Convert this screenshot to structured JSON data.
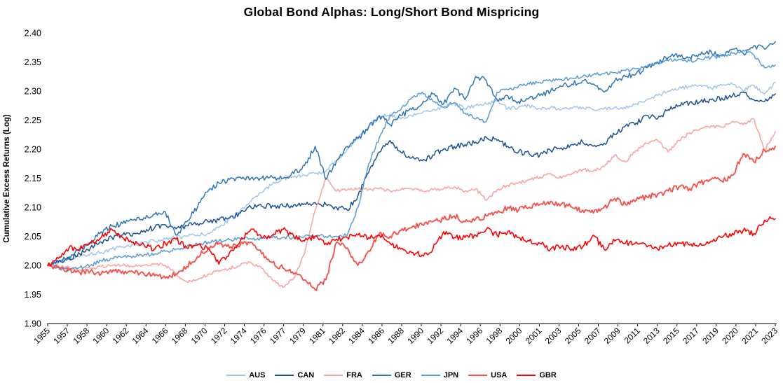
{
  "chart_data": {
    "type": "line",
    "title": "Global Bond Alphas: Long/Short Bond Mispricing",
    "ylabel": "Cumulative Excess Returns (Log)",
    "xlabel": "",
    "ylim": [
      1.9,
      2.4
    ],
    "y_ticks": [
      "2.40",
      "2.35",
      "2.30",
      "2.25",
      "2.20",
      "2.15",
      "2.10",
      "2.05",
      "2.00",
      "1.95",
      "1.90"
    ],
    "grid": false,
    "legend_position": "bottom",
    "x_tick_labels": [
      "1955",
      "1957",
      "1958",
      "1960",
      "1962",
      "1964",
      "1966",
      "1968",
      "1970",
      "1972",
      "1974",
      "1976",
      "1977",
      "1979",
      "1981",
      "1982",
      "1984",
      "1986",
      "1988",
      "1990",
      "1992",
      "1994",
      "1996",
      "1998",
      "2000",
      "2001",
      "2003",
      "2005",
      "2007",
      "2009",
      "2011",
      "2013",
      "2015",
      "2017",
      "2019",
      "2020",
      "2021",
      "2023"
    ],
    "x": [
      1955,
      1956,
      1957,
      1958,
      1959,
      1960,
      1961,
      1962,
      1963,
      1964,
      1965,
      1966,
      1967,
      1968,
      1969,
      1970,
      1971,
      1972,
      1973,
      1974,
      1975,
      1976,
      1977,
      1978,
      1979,
      1980,
      1981,
      1982,
      1983,
      1984,
      1985,
      1986,
      1987,
      1988,
      1989,
      1990,
      1991,
      1992,
      1993,
      1994,
      1995,
      1996,
      1997,
      1998,
      1999,
      2000,
      2001,
      2002,
      2003,
      2004,
      2005,
      2006,
      2007,
      2008,
      2009,
      2010,
      2011,
      2012,
      2013,
      2014,
      2015,
      2016,
      2017,
      2018,
      2019,
      2020,
      2021,
      2022,
      2023
    ],
    "series": [
      {
        "name": "AUS",
        "color": "#9DC3E6",
        "values": [
          2.0,
          2.005,
          2.01,
          2.015,
          2.02,
          2.022,
          2.028,
          2.032,
          2.035,
          2.04,
          2.042,
          2.045,
          2.048,
          2.05,
          2.052,
          2.055,
          2.065,
          2.08,
          2.095,
          2.11,
          2.125,
          2.14,
          2.15,
          2.152,
          2.155,
          2.158,
          2.162,
          2.18,
          2.2,
          2.22,
          2.24,
          2.255,
          2.26,
          2.252,
          2.258,
          2.262,
          2.268,
          2.272,
          2.278,
          2.27,
          2.275,
          2.278,
          2.282,
          2.27,
          2.272,
          2.275,
          2.27,
          2.272,
          2.268,
          2.27,
          2.272,
          2.268,
          2.27,
          2.272,
          2.27,
          2.278,
          2.285,
          2.292,
          2.3,
          2.305,
          2.308,
          2.31,
          2.305,
          2.31,
          2.312,
          2.3,
          2.31,
          2.295,
          2.315
        ]
      },
      {
        "name": "CAN",
        "color": "#1B5093",
        "values": [
          2.0,
          2.005,
          2.012,
          2.02,
          2.03,
          2.04,
          2.048,
          2.052,
          2.055,
          2.06,
          2.065,
          2.07,
          2.063,
          2.068,
          2.072,
          2.075,
          2.078,
          2.082,
          2.09,
          2.1,
          2.102,
          2.103,
          2.102,
          2.104,
          2.106,
          2.108,
          2.105,
          2.1,
          2.095,
          2.12,
          2.16,
          2.195,
          2.215,
          2.195,
          2.185,
          2.18,
          2.19,
          2.2,
          2.205,
          2.208,
          2.212,
          2.22,
          2.215,
          2.205,
          2.195,
          2.192,
          2.19,
          2.198,
          2.202,
          2.208,
          2.212,
          2.205,
          2.21,
          2.225,
          2.24,
          2.245,
          2.258,
          2.252,
          2.268,
          2.275,
          2.28,
          2.282,
          2.285,
          2.288,
          2.292,
          2.298,
          2.285,
          2.282,
          2.295
        ]
      },
      {
        "name": "FRA",
        "color": "#F7A6A3",
        "values": [
          2.0,
          1.998,
          1.996,
          1.992,
          1.995,
          1.998,
          2.0,
          2.0,
          1.998,
          2.0,
          2.002,
          2.0,
          1.985,
          1.972,
          1.975,
          1.985,
          1.99,
          1.995,
          2.0,
          2.005,
          1.995,
          1.975,
          1.962,
          1.978,
          2.02,
          2.095,
          2.15,
          2.128,
          2.13,
          2.132,
          2.13,
          2.132,
          2.128,
          2.13,
          2.132,
          2.128,
          2.13,
          2.132,
          2.135,
          2.128,
          2.132,
          2.112,
          2.13,
          2.138,
          2.142,
          2.148,
          2.152,
          2.158,
          2.15,
          2.158,
          2.165,
          2.162,
          2.17,
          2.19,
          2.178,
          2.198,
          2.21,
          2.215,
          2.195,
          2.215,
          2.228,
          2.235,
          2.24,
          2.238,
          2.248,
          2.242,
          2.252,
          2.198,
          2.23
        ]
      },
      {
        "name": "GER",
        "color": "#2E75B6",
        "values": [
          2.0,
          2.008,
          2.015,
          2.025,
          2.04,
          2.058,
          2.068,
          2.072,
          2.078,
          2.082,
          2.088,
          2.092,
          2.052,
          2.075,
          2.1,
          2.128,
          2.142,
          2.148,
          2.152,
          2.15,
          2.15,
          2.152,
          2.15,
          2.158,
          2.172,
          2.205,
          2.148,
          2.18,
          2.205,
          2.218,
          2.238,
          2.258,
          2.242,
          2.258,
          2.268,
          2.278,
          2.295,
          2.278,
          2.305,
          2.285,
          2.325,
          2.318,
          2.285,
          2.292,
          2.282,
          2.288,
          2.292,
          2.3,
          2.308,
          2.312,
          2.318,
          2.312,
          2.298,
          2.318,
          2.325,
          2.33,
          2.34,
          2.35,
          2.358,
          2.362,
          2.358,
          2.362,
          2.368,
          2.362,
          2.372,
          2.365,
          2.378,
          2.372,
          2.385
        ]
      },
      {
        "name": "JPN",
        "color": "#5B9BD5",
        "values": [
          2.0,
          1.996,
          1.992,
          1.996,
          2.0,
          2.008,
          2.012,
          2.014,
          2.016,
          2.018,
          2.02,
          2.024,
          2.028,
          2.032,
          2.036,
          2.04,
          2.042,
          2.044,
          2.046,
          2.046,
          2.046,
          2.048,
          2.048,
          2.048,
          2.05,
          2.05,
          2.05,
          2.05,
          2.052,
          2.1,
          2.175,
          2.22,
          2.258,
          2.268,
          2.288,
          2.298,
          2.282,
          2.272,
          2.28,
          2.262,
          2.252,
          2.248,
          2.298,
          2.302,
          2.308,
          2.312,
          2.315,
          2.318,
          2.32,
          2.322,
          2.325,
          2.328,
          2.33,
          2.332,
          2.335,
          2.338,
          2.342,
          2.348,
          2.352,
          2.355,
          2.352,
          2.355,
          2.358,
          2.36,
          2.365,
          2.37,
          2.362,
          2.34,
          2.345
        ]
      },
      {
        "name": "USA",
        "color": "#F4524D",
        "values": [
          2.0,
          1.998,
          1.992,
          1.988,
          1.99,
          1.985,
          1.988,
          1.99,
          1.988,
          1.985,
          1.982,
          1.978,
          1.985,
          1.998,
          2.015,
          2.03,
          2.038,
          2.03,
          2.035,
          2.04,
          2.02,
          2.005,
          1.995,
          1.985,
          1.975,
          1.958,
          1.975,
          2.04,
          2.03,
          2.0,
          2.025,
          2.055,
          2.05,
          2.06,
          2.065,
          2.07,
          2.075,
          2.08,
          2.085,
          2.075,
          2.08,
          2.085,
          2.09,
          2.1,
          2.095,
          2.1,
          2.105,
          2.11,
          2.105,
          2.1,
          2.095,
          2.09,
          2.1,
          2.115,
          2.105,
          2.112,
          2.118,
          2.122,
          2.128,
          2.135,
          2.132,
          2.142,
          2.148,
          2.145,
          2.155,
          2.192,
          2.178,
          2.198,
          2.205
        ]
      },
      {
        "name": "GBR",
        "color": "#FF0000",
        "values": [
          2.0,
          2.012,
          2.03,
          2.028,
          2.038,
          2.048,
          2.062,
          2.048,
          2.04,
          2.035,
          2.028,
          2.038,
          2.045,
          2.03,
          2.035,
          2.028,
          2.002,
          2.022,
          2.042,
          2.062,
          2.048,
          2.052,
          2.062,
          2.05,
          2.042,
          2.05,
          2.038,
          2.045,
          2.048,
          2.052,
          2.048,
          2.052,
          2.038,
          2.028,
          2.022,
          2.018,
          2.028,
          2.058,
          2.048,
          2.048,
          2.052,
          2.062,
          2.052,
          2.058,
          2.048,
          2.042,
          2.038,
          2.028,
          2.032,
          2.028,
          2.032,
          2.052,
          2.028,
          2.042,
          2.038,
          2.04,
          2.032,
          2.028,
          2.035,
          2.038,
          2.035,
          2.038,
          2.042,
          2.048,
          2.055,
          2.06,
          2.055,
          2.078,
          2.08
        ]
      }
    ]
  }
}
